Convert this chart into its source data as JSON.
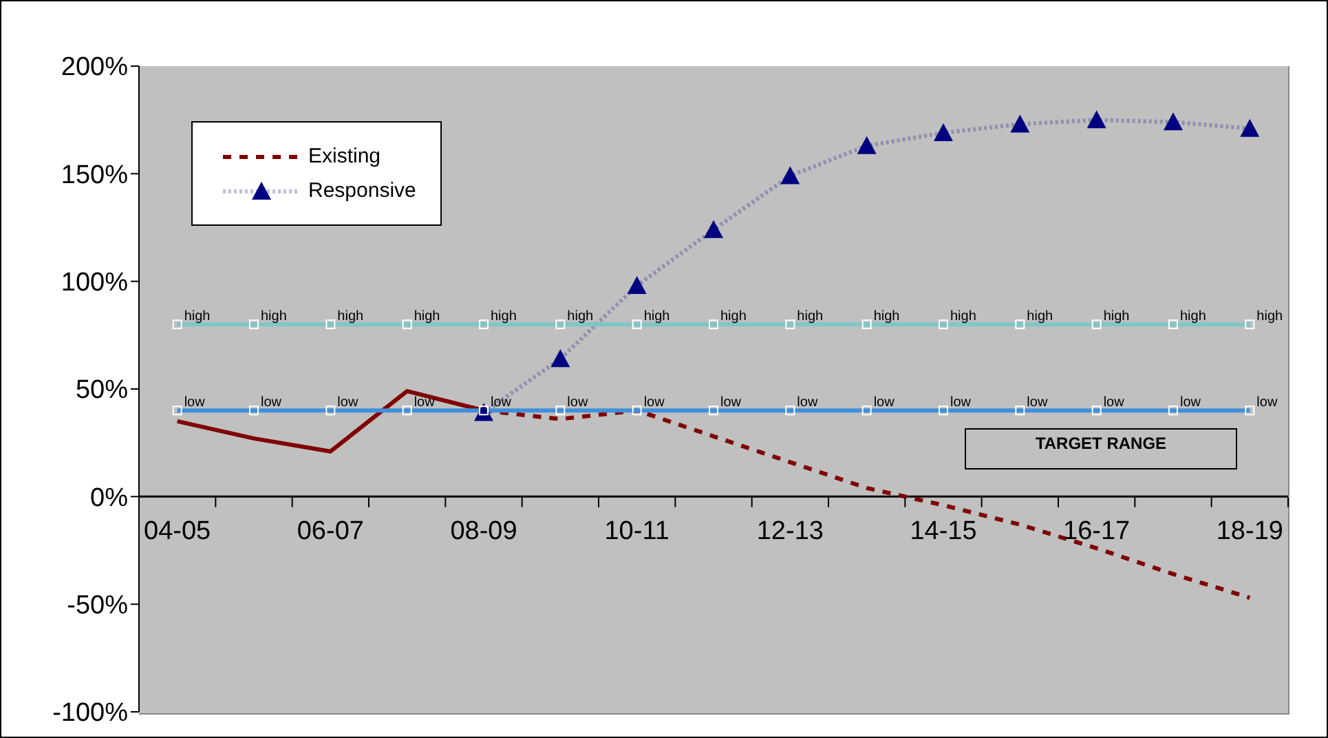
{
  "chart_data": {
    "type": "line",
    "categories": [
      "04-05",
      null,
      "06-07",
      null,
      "08-09",
      null,
      "10-11",
      null,
      "12-13",
      null,
      "14-15",
      null,
      "16-17",
      null,
      "18-19"
    ],
    "series": [
      {
        "color": "#800000",
        "line_style": "solid",
        "marker": "none",
        "values": [
          35,
          27,
          21,
          49,
          40,
          null,
          null,
          null,
          null,
          null,
          null,
          null,
          null,
          null,
          null
        ]
      },
      {
        "name": "Existing",
        "color": "#800000",
        "line_style": "dashed",
        "marker": "none",
        "values": [
          null,
          null,
          null,
          null,
          40,
          36,
          40,
          28,
          16,
          4,
          -4,
          -13,
          -24,
          -36,
          -47
        ]
      },
      {
        "name": "Responsive",
        "color": "#000080",
        "line_style": "dotted",
        "marker": "triangle",
        "values": [
          null,
          null,
          null,
          null,
          39,
          64,
          98,
          124,
          149,
          163,
          169,
          173,
          175,
          174,
          171
        ]
      },
      {
        "color": "#7fc6c6",
        "line_style": "solid",
        "marker": "square",
        "values": [
          80,
          80,
          80,
          80,
          80,
          80,
          80,
          80,
          80,
          80,
          80,
          80,
          80,
          80,
          80
        ],
        "value_labels": [
          "high",
          "high",
          "high",
          "high",
          "high",
          "high",
          "high",
          "high",
          "high",
          "high",
          "high",
          "high",
          "high",
          "high",
          "high"
        ]
      },
      {
        "color": "#3f8fdc",
        "line_style": "solid",
        "marker": "square",
        "values": [
          40,
          40,
          40,
          40,
          40,
          40,
          40,
          40,
          40,
          40,
          40,
          40,
          40,
          40,
          40
        ],
        "value_labels": [
          "low",
          "low",
          "low",
          "low",
          "low",
          "low",
          "low",
          "low",
          "low",
          "low",
          "low",
          "low",
          "low",
          "low",
          "low"
        ]
      }
    ],
    "ylim": [
      -100,
      200
    ],
    "yticks": [
      {
        "value": -100,
        "label": "-100%"
      },
      {
        "value": -50,
        "label": "-50%"
      },
      {
        "value": 0,
        "label": "0%"
      },
      {
        "value": 50,
        "label": "50%"
      },
      {
        "value": 100,
        "label": "100%"
      },
      {
        "value": 150,
        "label": "150%"
      },
      {
        "value": 200,
        "label": "200%"
      }
    ],
    "annotations": [
      "TARGET RANGE"
    ],
    "legend": "top left"
  }
}
